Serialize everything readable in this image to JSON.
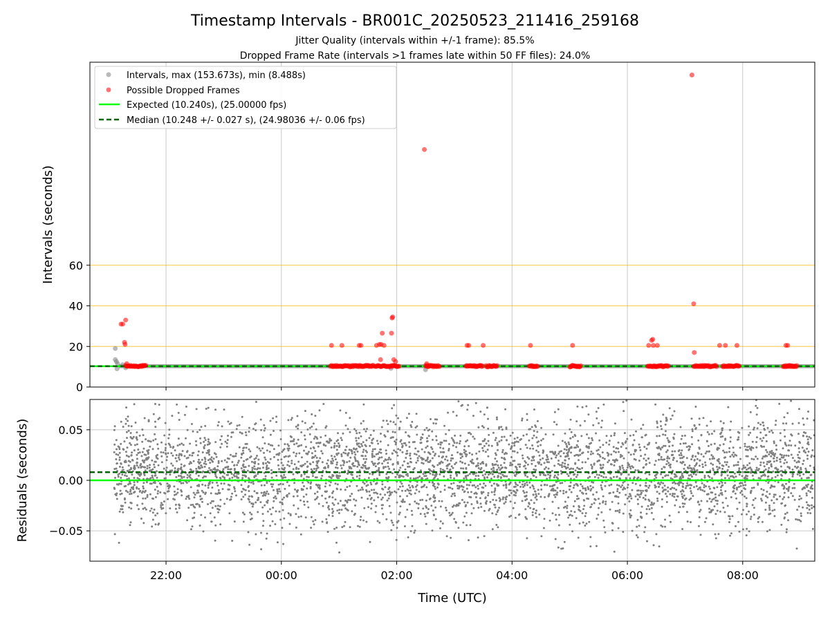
{
  "chart_data": [
    {
      "type": "scatter",
      "title": "Timestamp Intervals - BR001C_20250523_211416_259168",
      "subtitle_lines": [
        "Jitter Quality (intervals within +/-1 frame): 85.5%",
        "Dropped Frame Rate (intervals >1 frames late within 50 FF files): 24.0%"
      ],
      "xlabel": "",
      "ylabel": "Intervals (seconds)",
      "x_range_hours": [
        20.68,
        33.25
      ],
      "ylim": [
        0,
        160
      ],
      "y_ticks": [
        0,
        20,
        40,
        60
      ],
      "y_tick_labels": [
        "0",
        "20",
        "40",
        "60"
      ],
      "x_ticks_hours": [
        22,
        24,
        26,
        28,
        30,
        32
      ],
      "x_tick_labels": [
        "22:00",
        "00:00",
        "02:00",
        "04:00",
        "06:00",
        "08:00"
      ],
      "reference_lines": [
        20,
        40,
        60
      ],
      "grid": "vertical",
      "legend_placement": "top-left",
      "legend": [
        "Intervals, max (153.673s), min (8.488s)",
        "Possible Dropped Frames",
        "Expected (10.240s), (25.00000 fps)",
        "Median (10.248 +/- 0.027 s), (24.98036 +/- 0.06 fps)"
      ],
      "expected_interval": 10.24,
      "median_interval": 10.248,
      "normal_interval_range_hours": [
        21.18,
        33.25
      ],
      "gray_outliers": [
        {
          "x": 21.12,
          "y": 19
        },
        {
          "x": 21.12,
          "y": 13.5
        },
        {
          "x": 21.14,
          "y": 12.5
        },
        {
          "x": 21.16,
          "y": 11.5
        },
        {
          "x": 21.15,
          "y": 9
        },
        {
          "x": 21.25,
          "y": 11
        },
        {
          "x": 21.3,
          "y": 9.5
        },
        {
          "x": 26.5,
          "y": 8.5
        },
        {
          "x": 25.9,
          "y": 9.2
        }
      ],
      "dropped_frames": [
        {
          "x": 21.22,
          "y": 31
        },
        {
          "x": 21.25,
          "y": 31
        },
        {
          "x": 21.28,
          "y": 22
        },
        {
          "x": 21.29,
          "y": 21
        },
        {
          "x": 21.3,
          "y": 33
        },
        {
          "x": 21.32,
          "y": 11.5
        },
        {
          "x": 24.87,
          "y": 20.5
        },
        {
          "x": 25.05,
          "y": 20.5
        },
        {
          "x": 25.35,
          "y": 20.5
        },
        {
          "x": 25.38,
          "y": 20.5
        },
        {
          "x": 25.65,
          "y": 20.5
        },
        {
          "x": 25.7,
          "y": 21
        },
        {
          "x": 25.73,
          "y": 21
        },
        {
          "x": 25.75,
          "y": 26.5
        },
        {
          "x": 25.78,
          "y": 20.5
        },
        {
          "x": 25.72,
          "y": 13.5
        },
        {
          "x": 25.92,
          "y": 34
        },
        {
          "x": 25.93,
          "y": 34.5
        },
        {
          "x": 25.91,
          "y": 26.5
        },
        {
          "x": 25.95,
          "y": 13.5
        },
        {
          "x": 25.98,
          "y": 12.5
        },
        {
          "x": 26.48,
          "y": 117
        },
        {
          "x": 26.52,
          "y": 11.5
        },
        {
          "x": 27.22,
          "y": 20.5
        },
        {
          "x": 27.25,
          "y": 20.5
        },
        {
          "x": 27.5,
          "y": 20.5
        },
        {
          "x": 28.32,
          "y": 20.5
        },
        {
          "x": 29.05,
          "y": 20.5
        },
        {
          "x": 30.37,
          "y": 20.5
        },
        {
          "x": 30.42,
          "y": 23
        },
        {
          "x": 30.44,
          "y": 23.5
        },
        {
          "x": 30.45,
          "y": 20.5
        },
        {
          "x": 30.52,
          "y": 20.5
        },
        {
          "x": 31.12,
          "y": 153.7
        },
        {
          "x": 31.15,
          "y": 41
        },
        {
          "x": 31.16,
          "y": 17
        },
        {
          "x": 31.6,
          "y": 20.5
        },
        {
          "x": 31.7,
          "y": 20.5
        },
        {
          "x": 31.9,
          "y": 20.5
        },
        {
          "x": 32.75,
          "y": 20.5
        },
        {
          "x": 32.78,
          "y": 20.5
        }
      ],
      "dropped_frame_bands_at_10s_hours": [
        [
          21.3,
          21.65
        ],
        [
          24.85,
          25.6
        ],
        [
          25.62,
          26.05
        ],
        [
          26.5,
          26.75
        ],
        [
          27.2,
          27.5
        ],
        [
          27.55,
          27.75
        ],
        [
          28.3,
          28.45
        ],
        [
          29.0,
          29.2
        ],
        [
          30.35,
          30.72
        ],
        [
          31.15,
          31.55
        ],
        [
          31.65,
          31.95
        ],
        [
          32.7,
          32.95
        ]
      ]
    },
    {
      "type": "scatter",
      "xlabel": "Time (UTC)",
      "ylabel": "Residuals (seconds)",
      "x_range_hours": [
        20.68,
        33.25
      ],
      "ylim": [
        -0.08,
        0.08
      ],
      "y_ticks": [
        -0.05,
        0,
        0.05
      ],
      "y_tick_labels": [
        "−0.05",
        "0.00",
        "0.05"
      ],
      "x_ticks_hours": [
        22,
        24,
        26,
        28,
        30,
        32
      ],
      "x_tick_labels": [
        "22:00",
        "00:00",
        "02:00",
        "04:00",
        "06:00",
        "08:00"
      ],
      "grid": "both",
      "zero_line": 0,
      "median_line": 0.008,
      "residual_range_hours": [
        21.1,
        33.25
      ],
      "residual_std": 0.027,
      "residual_mean": 0.008,
      "residual_point_count": 4200
    }
  ],
  "colors": {
    "gray_points": "#808080",
    "dropped": "#ff0000",
    "expected_line": "#00ff00",
    "median_line": "#006400",
    "reference_lines": "#ffb000",
    "grid": "#c8c8c8"
  }
}
